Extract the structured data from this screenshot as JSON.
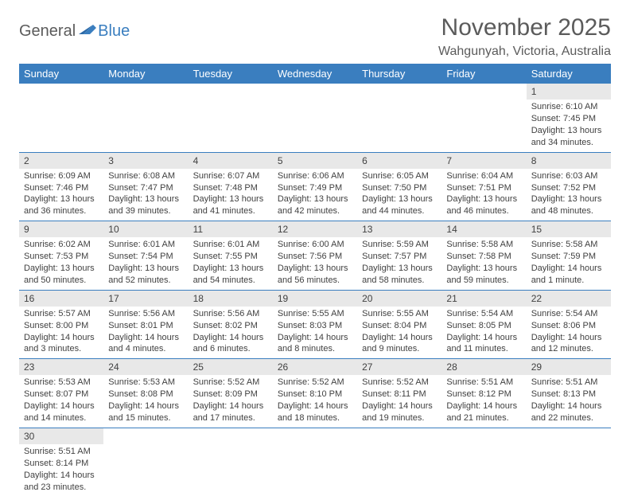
{
  "logo": {
    "general": "General",
    "blue": "Blue"
  },
  "header": {
    "month_title": "November 2025",
    "location": "Wahgunyah, Victoria, Australia"
  },
  "colors": {
    "header_bg": "#3a7ebf",
    "header_text": "#ffffff",
    "daynum_bg": "#e8e8e8",
    "body_text": "#414141",
    "rule": "#3a7ebf"
  },
  "day_headers": [
    "Sunday",
    "Monday",
    "Tuesday",
    "Wednesday",
    "Thursday",
    "Friday",
    "Saturday"
  ],
  "weeks": [
    [
      null,
      null,
      null,
      null,
      null,
      null,
      {
        "n": "1",
        "sunrise": "Sunrise: 6:10 AM",
        "sunset": "Sunset: 7:45 PM",
        "daylight": "Daylight: 13 hours and 34 minutes."
      }
    ],
    [
      {
        "n": "2",
        "sunrise": "Sunrise: 6:09 AM",
        "sunset": "Sunset: 7:46 PM",
        "daylight": "Daylight: 13 hours and 36 minutes."
      },
      {
        "n": "3",
        "sunrise": "Sunrise: 6:08 AM",
        "sunset": "Sunset: 7:47 PM",
        "daylight": "Daylight: 13 hours and 39 minutes."
      },
      {
        "n": "4",
        "sunrise": "Sunrise: 6:07 AM",
        "sunset": "Sunset: 7:48 PM",
        "daylight": "Daylight: 13 hours and 41 minutes."
      },
      {
        "n": "5",
        "sunrise": "Sunrise: 6:06 AM",
        "sunset": "Sunset: 7:49 PM",
        "daylight": "Daylight: 13 hours and 42 minutes."
      },
      {
        "n": "6",
        "sunrise": "Sunrise: 6:05 AM",
        "sunset": "Sunset: 7:50 PM",
        "daylight": "Daylight: 13 hours and 44 minutes."
      },
      {
        "n": "7",
        "sunrise": "Sunrise: 6:04 AM",
        "sunset": "Sunset: 7:51 PM",
        "daylight": "Daylight: 13 hours and 46 minutes."
      },
      {
        "n": "8",
        "sunrise": "Sunrise: 6:03 AM",
        "sunset": "Sunset: 7:52 PM",
        "daylight": "Daylight: 13 hours and 48 minutes."
      }
    ],
    [
      {
        "n": "9",
        "sunrise": "Sunrise: 6:02 AM",
        "sunset": "Sunset: 7:53 PM",
        "daylight": "Daylight: 13 hours and 50 minutes."
      },
      {
        "n": "10",
        "sunrise": "Sunrise: 6:01 AM",
        "sunset": "Sunset: 7:54 PM",
        "daylight": "Daylight: 13 hours and 52 minutes."
      },
      {
        "n": "11",
        "sunrise": "Sunrise: 6:01 AM",
        "sunset": "Sunset: 7:55 PM",
        "daylight": "Daylight: 13 hours and 54 minutes."
      },
      {
        "n": "12",
        "sunrise": "Sunrise: 6:00 AM",
        "sunset": "Sunset: 7:56 PM",
        "daylight": "Daylight: 13 hours and 56 minutes."
      },
      {
        "n": "13",
        "sunrise": "Sunrise: 5:59 AM",
        "sunset": "Sunset: 7:57 PM",
        "daylight": "Daylight: 13 hours and 58 minutes."
      },
      {
        "n": "14",
        "sunrise": "Sunrise: 5:58 AM",
        "sunset": "Sunset: 7:58 PM",
        "daylight": "Daylight: 13 hours and 59 minutes."
      },
      {
        "n": "15",
        "sunrise": "Sunrise: 5:58 AM",
        "sunset": "Sunset: 7:59 PM",
        "daylight": "Daylight: 14 hours and 1 minute."
      }
    ],
    [
      {
        "n": "16",
        "sunrise": "Sunrise: 5:57 AM",
        "sunset": "Sunset: 8:00 PM",
        "daylight": "Daylight: 14 hours and 3 minutes."
      },
      {
        "n": "17",
        "sunrise": "Sunrise: 5:56 AM",
        "sunset": "Sunset: 8:01 PM",
        "daylight": "Daylight: 14 hours and 4 minutes."
      },
      {
        "n": "18",
        "sunrise": "Sunrise: 5:56 AM",
        "sunset": "Sunset: 8:02 PM",
        "daylight": "Daylight: 14 hours and 6 minutes."
      },
      {
        "n": "19",
        "sunrise": "Sunrise: 5:55 AM",
        "sunset": "Sunset: 8:03 PM",
        "daylight": "Daylight: 14 hours and 8 minutes."
      },
      {
        "n": "20",
        "sunrise": "Sunrise: 5:55 AM",
        "sunset": "Sunset: 8:04 PM",
        "daylight": "Daylight: 14 hours and 9 minutes."
      },
      {
        "n": "21",
        "sunrise": "Sunrise: 5:54 AM",
        "sunset": "Sunset: 8:05 PM",
        "daylight": "Daylight: 14 hours and 11 minutes."
      },
      {
        "n": "22",
        "sunrise": "Sunrise: 5:54 AM",
        "sunset": "Sunset: 8:06 PM",
        "daylight": "Daylight: 14 hours and 12 minutes."
      }
    ],
    [
      {
        "n": "23",
        "sunrise": "Sunrise: 5:53 AM",
        "sunset": "Sunset: 8:07 PM",
        "daylight": "Daylight: 14 hours and 14 minutes."
      },
      {
        "n": "24",
        "sunrise": "Sunrise: 5:53 AM",
        "sunset": "Sunset: 8:08 PM",
        "daylight": "Daylight: 14 hours and 15 minutes."
      },
      {
        "n": "25",
        "sunrise": "Sunrise: 5:52 AM",
        "sunset": "Sunset: 8:09 PM",
        "daylight": "Daylight: 14 hours and 17 minutes."
      },
      {
        "n": "26",
        "sunrise": "Sunrise: 5:52 AM",
        "sunset": "Sunset: 8:10 PM",
        "daylight": "Daylight: 14 hours and 18 minutes."
      },
      {
        "n": "27",
        "sunrise": "Sunrise: 5:52 AM",
        "sunset": "Sunset: 8:11 PM",
        "daylight": "Daylight: 14 hours and 19 minutes."
      },
      {
        "n": "28",
        "sunrise": "Sunrise: 5:51 AM",
        "sunset": "Sunset: 8:12 PM",
        "daylight": "Daylight: 14 hours and 21 minutes."
      },
      {
        "n": "29",
        "sunrise": "Sunrise: 5:51 AM",
        "sunset": "Sunset: 8:13 PM",
        "daylight": "Daylight: 14 hours and 22 minutes."
      }
    ],
    [
      {
        "n": "30",
        "sunrise": "Sunrise: 5:51 AM",
        "sunset": "Sunset: 8:14 PM",
        "daylight": "Daylight: 14 hours and 23 minutes."
      },
      null,
      null,
      null,
      null,
      null,
      null
    ]
  ]
}
